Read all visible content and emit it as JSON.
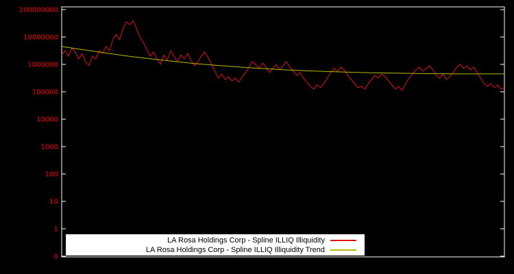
{
  "colors": {
    "background": "#000000",
    "frame": "#ffffff",
    "tick_label": "#ff0000",
    "series_main": "#dd1111",
    "series_trend": "#b8b800",
    "legend_bg": "#ffffff",
    "legend_text": "#000000"
  },
  "chart_data": {
    "type": "line",
    "title": "",
    "xlabel": "",
    "ylabel": "",
    "y_scale": "log",
    "grid": false,
    "legend_position": "bottom-center",
    "x_tick_labels": [],
    "y_ticks": [
      {
        "label": "0",
        "value": 0
      },
      {
        "label": "1",
        "value": 1
      },
      {
        "label": "10",
        "value": 10
      },
      {
        "label": "100",
        "value": 100
      },
      {
        "label": "1000",
        "value": 1000
      },
      {
        "label": "10000",
        "value": 10000
      },
      {
        "label": "100000",
        "value": 100000
      },
      {
        "label": "1000000",
        "value": 1000000
      },
      {
        "label": "10000000",
        "value": 10000000
      },
      {
        "label": "100000000",
        "value": 100000000
      }
    ],
    "ylim_log": [
      1,
      100000000
    ],
    "series": [
      {
        "name": "LA Rosa Holdings Corp - Spline ILLIQ Illiquidity",
        "color": "#dd1111",
        "values": [
          2240000,
          3160000,
          2000000,
          3980000,
          2820000,
          1580000,
          2510000,
          1260000,
          891000,
          2000000,
          1580000,
          3160000,
          2510000,
          4470000,
          3160000,
          7940000,
          12600000,
          7940000,
          20000000,
          35500000,
          28200000,
          39800000,
          20000000,
          10000000,
          6310000,
          3550000,
          2000000,
          2820000,
          1580000,
          1000000,
          2240000,
          1410000,
          3160000,
          2000000,
          1260000,
          2240000,
          1580000,
          2510000,
          1410000,
          891000,
          1260000,
          2000000,
          2820000,
          1780000,
          1000000,
          562000,
          316000,
          447000,
          282000,
          355000,
          251000,
          316000,
          224000,
          355000,
          501000,
          794000,
          1260000,
          1000000,
          708000,
          1120000,
          794000,
          501000,
          708000,
          1000000,
          631000,
          891000,
          1260000,
          794000,
          562000,
          398000,
          501000,
          316000,
          224000,
          158000,
          126000,
          178000,
          141000,
          200000,
          316000,
          501000,
          708000,
          562000,
          794000,
          631000,
          398000,
          282000,
          200000,
          141000,
          158000,
          126000,
          200000,
          282000,
          398000,
          316000,
          447000,
          355000,
          251000,
          178000,
          126000,
          158000,
          112000,
          200000,
          316000,
          447000,
          631000,
          794000,
          562000,
          708000,
          891000,
          631000,
          398000,
          316000,
          447000,
          282000,
          355000,
          501000,
          794000,
          1000000,
          708000,
          891000,
          631000,
          794000,
          501000,
          316000,
          200000,
          158000,
          200000,
          141000,
          178000,
          126000,
          141000
        ]
      },
      {
        "name": "LA Rosa Holdings Corp - Spline ILLIQ Illiquidity Trend",
        "color": "#b8b800",
        "values": [
          4500000,
          3400000,
          2600000,
          2000000,
          1600000,
          1300000,
          1080000,
          920000,
          800000,
          710000,
          640000,
          590000,
          550000,
          520000,
          495000,
          478000,
          465000,
          456000,
          450000,
          448000,
          449000
        ]
      }
    ]
  }
}
